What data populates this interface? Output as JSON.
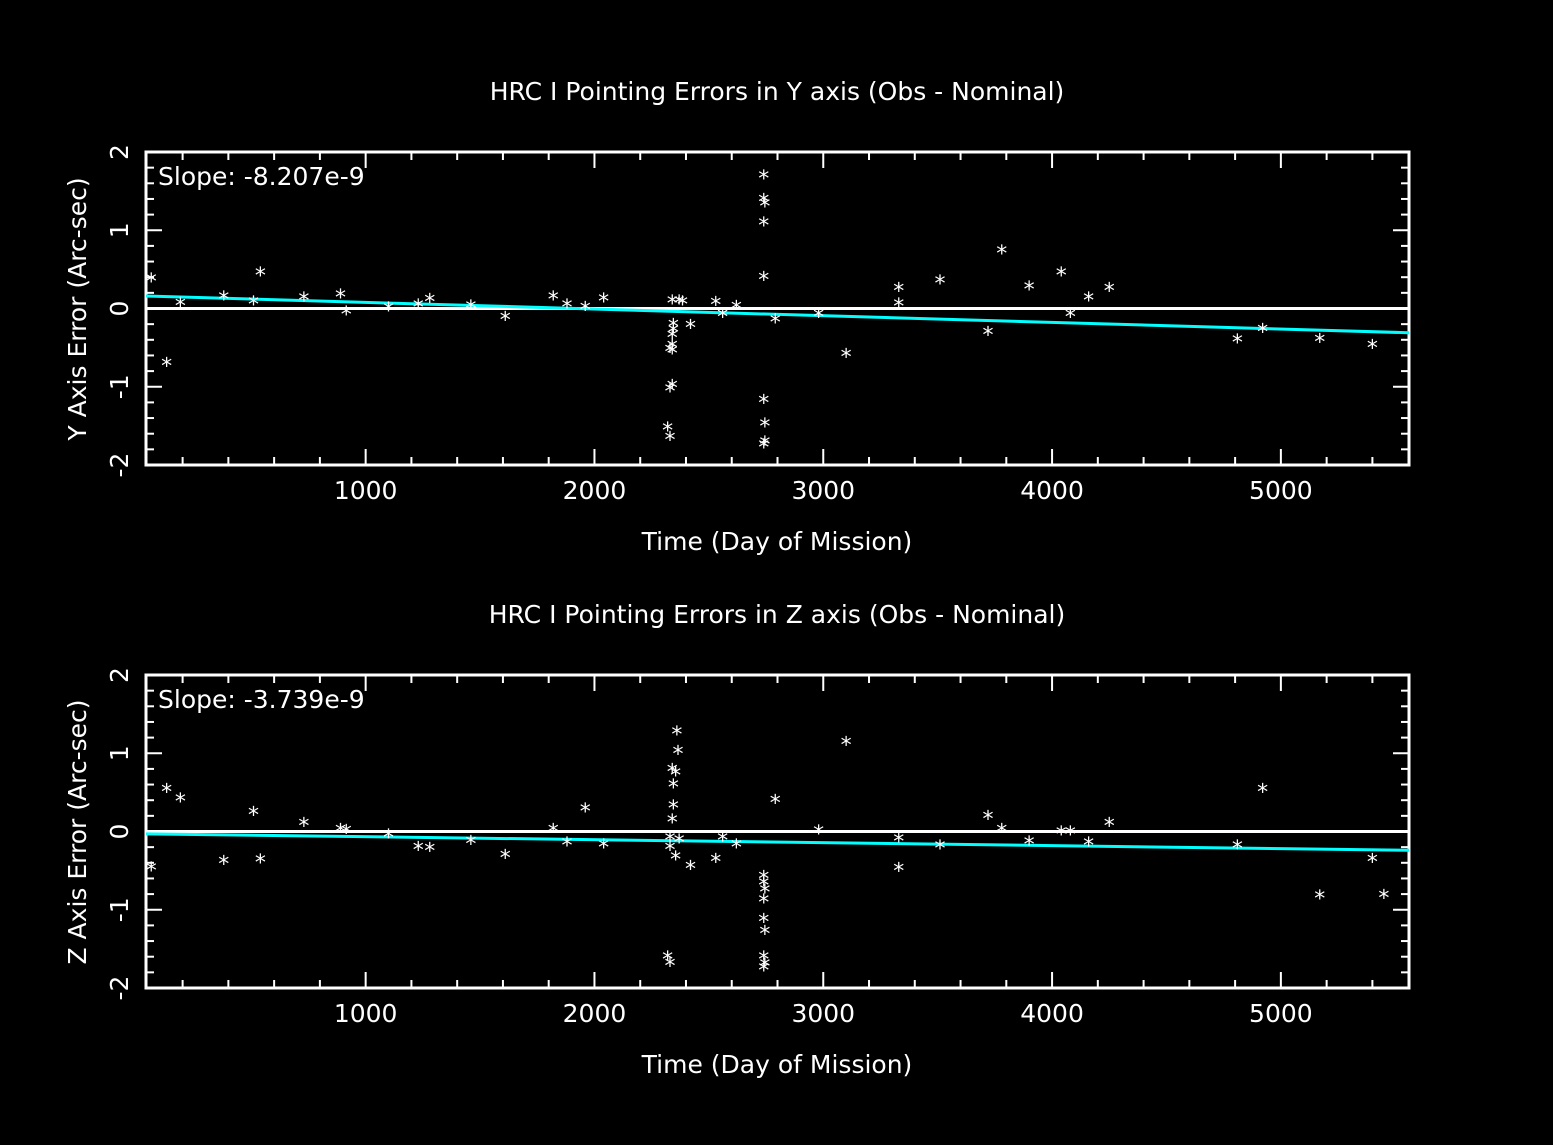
{
  "chart_data": [
    {
      "type": "scatter",
      "title": "HRC I Pointing Errors in Y axis (Obs - Nominal)",
      "xlabel": "Time (Day of Mission)",
      "ylabel": "Y Axis Error (Arc-sec)",
      "slope_text": "Slope: -8.207e-9",
      "xlim": [
        40,
        5560
      ],
      "ylim": [
        -2,
        2
      ],
      "x_ticks": [
        "1000",
        "2000",
        "3000",
        "4000",
        "5000"
      ],
      "x_tick_values": [
        1000,
        2000,
        3000,
        4000,
        5000
      ],
      "y_ticks": [
        "-2",
        "-1",
        "0",
        "1",
        "2"
      ],
      "y_tick_values": [
        -2,
        -1,
        0,
        1,
        2
      ],
      "zero_line": 0,
      "fit_line": {
        "color": "#00ffff",
        "x": [
          40,
          5560
        ],
        "y": [
          0.16,
          -0.31
        ]
      },
      "point_color": "#ffffff",
      "grid": false,
      "points": [
        [
          63,
          0.4
        ],
        [
          130,
          -0.68
        ],
        [
          190,
          0.09
        ],
        [
          380,
          0.17
        ],
        [
          510,
          0.11
        ],
        [
          540,
          0.48
        ],
        [
          730,
          0.16
        ],
        [
          890,
          0.2
        ],
        [
          915,
          -0.02
        ],
        [
          1100,
          0.03
        ],
        [
          1230,
          0.07
        ],
        [
          1280,
          0.14
        ],
        [
          1460,
          0.06
        ],
        [
          1610,
          -0.09
        ],
        [
          1820,
          0.17
        ],
        [
          1880,
          0.07
        ],
        [
          1960,
          0.04
        ],
        [
          2040,
          0.15
        ],
        [
          2320,
          -1.5
        ],
        [
          2330,
          -1.62
        ],
        [
          2330,
          -1.0
        ],
        [
          2340,
          -0.96
        ],
        [
          2330,
          -0.5
        ],
        [
          2340,
          -0.45
        ],
        [
          2340,
          -0.52
        ],
        [
          2340,
          -0.32
        ],
        [
          2345,
          -0.25
        ],
        [
          2345,
          -0.18
        ],
        [
          2340,
          0.12
        ],
        [
          2370,
          0.12
        ],
        [
          2385,
          0.11
        ],
        [
          2420,
          -0.19
        ],
        [
          2530,
          0.1
        ],
        [
          2560,
          -0.05
        ],
        [
          2620,
          0.05
        ],
        [
          2740,
          1.72
        ],
        [
          2740,
          1.42
        ],
        [
          2745,
          1.36
        ],
        [
          2740,
          1.12
        ],
        [
          2740,
          0.42
        ],
        [
          2740,
          -1.15
        ],
        [
          2745,
          -1.45
        ],
        [
          2740,
          -1.72
        ],
        [
          2745,
          -1.68
        ],
        [
          2790,
          -0.12
        ],
        [
          2980,
          -0.05
        ],
        [
          3100,
          -0.56
        ],
        [
          3330,
          0.28
        ],
        [
          3330,
          0.08
        ],
        [
          3510,
          0.38
        ],
        [
          3720,
          -0.28
        ],
        [
          3780,
          0.76
        ],
        [
          3900,
          0.3
        ],
        [
          4040,
          0.48
        ],
        [
          4080,
          -0.05
        ],
        [
          4160,
          0.16
        ],
        [
          4250,
          0.28
        ],
        [
          4810,
          -0.38
        ],
        [
          4920,
          -0.24
        ],
        [
          5170,
          -0.37
        ],
        [
          5400,
          -0.45
        ]
      ]
    },
    {
      "type": "scatter",
      "title": "HRC I Pointing Errors in  Z axis (Obs - Nominal)",
      "xlabel": "Time (Day of Mission)",
      "ylabel": "Z Axis Error (Arc-sec)",
      "slope_text": "Slope: -3.739e-9",
      "xlim": [
        40,
        5560
      ],
      "ylim": [
        -2,
        2
      ],
      "x_ticks": [
        "1000",
        "2000",
        "3000",
        "4000",
        "5000"
      ],
      "x_tick_values": [
        1000,
        2000,
        3000,
        4000,
        5000
      ],
      "y_ticks": [
        "-2",
        "-1",
        "0",
        "1",
        "2"
      ],
      "y_tick_values": [
        -2,
        -1,
        0,
        1,
        2
      ],
      "zero_line": 0,
      "fit_line": {
        "color": "#00ffff",
        "x": [
          40,
          5560
        ],
        "y": [
          -0.03,
          -0.24
        ]
      },
      "point_color": "#ffffff",
      "grid": false,
      "points": [
        [
          63,
          -0.44
        ],
        [
          130,
          0.56
        ],
        [
          190,
          0.44
        ],
        [
          380,
          -0.36
        ],
        [
          510,
          0.27
        ],
        [
          540,
          -0.34
        ],
        [
          730,
          0.13
        ],
        [
          890,
          0.05
        ],
        [
          915,
          0.04
        ],
        [
          1100,
          -0.02
        ],
        [
          1230,
          -0.18
        ],
        [
          1280,
          -0.19
        ],
        [
          1460,
          -0.1
        ],
        [
          1610,
          -0.28
        ],
        [
          1820,
          0.05
        ],
        [
          1880,
          -0.12
        ],
        [
          1960,
          0.31
        ],
        [
          2040,
          -0.15
        ],
        [
          2320,
          -1.58
        ],
        [
          2330,
          -1.66
        ],
        [
          2330,
          -0.06
        ],
        [
          2330,
          -0.18
        ],
        [
          2340,
          0.17
        ],
        [
          2345,
          0.35
        ],
        [
          2345,
          0.62
        ],
        [
          2340,
          0.82
        ],
        [
          2355,
          0.77
        ],
        [
          2365,
          1.05
        ],
        [
          2360,
          1.3
        ],
        [
          2355,
          -0.3
        ],
        [
          2370,
          -0.08
        ],
        [
          2420,
          -0.42
        ],
        [
          2530,
          -0.33
        ],
        [
          2560,
          -0.06
        ],
        [
          2620,
          -0.15
        ],
        [
          2740,
          -0.55
        ],
        [
          2740,
          -0.63
        ],
        [
          2745,
          -0.72
        ],
        [
          2740,
          -0.85
        ],
        [
          2740,
          -1.1
        ],
        [
          2745,
          -1.25
        ],
        [
          2740,
          -1.58
        ],
        [
          2745,
          -1.67
        ],
        [
          2740,
          -1.72
        ],
        [
          2790,
          0.42
        ],
        [
          2980,
          0.03
        ],
        [
          3100,
          1.16
        ],
        [
          3330,
          -0.07
        ],
        [
          3330,
          -0.45
        ],
        [
          3510,
          -0.16
        ],
        [
          3720,
          0.22
        ],
        [
          3780,
          0.05
        ],
        [
          3900,
          -0.11
        ],
        [
          4040,
          0.02
        ],
        [
          4080,
          0.02
        ],
        [
          4160,
          -0.12
        ],
        [
          4250,
          0.13
        ],
        [
          4810,
          -0.16
        ],
        [
          4920,
          0.56
        ],
        [
          5170,
          -0.8
        ],
        [
          5400,
          -0.33
        ],
        [
          5450,
          -0.79
        ]
      ]
    }
  ]
}
